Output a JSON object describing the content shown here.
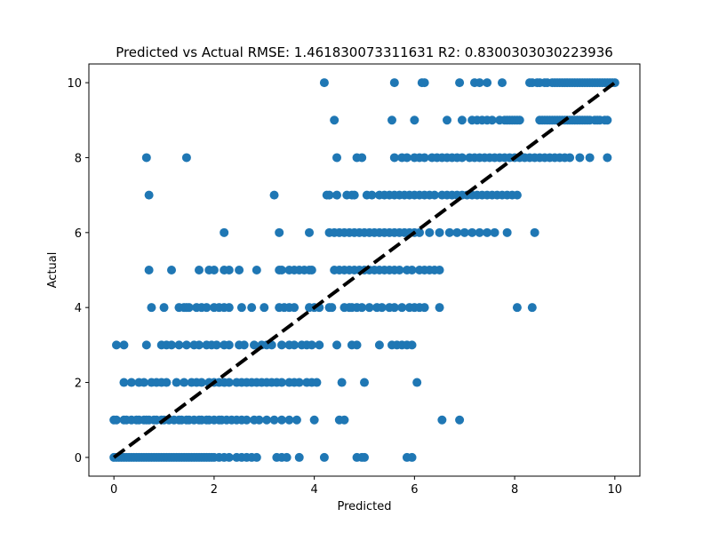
{
  "chart_data": {
    "type": "scatter",
    "title": "Predicted vs Actual  RMSE: 1.461830073311631  R2: 0.8300303030223936",
    "xlabel": "Predicted",
    "ylabel": "Actual",
    "xlim": [
      -0.5,
      10.5
    ],
    "ylim": [
      -0.5,
      10.5
    ],
    "xticks": [
      0,
      2,
      4,
      6,
      8,
      10
    ],
    "yticks": [
      0,
      2,
      4,
      6,
      8,
      10
    ],
    "point_color": "#1f77b4",
    "reference_line": {
      "x": [
        0,
        10
      ],
      "y": [
        0,
        10
      ],
      "color": "#000000",
      "style": "dashed"
    },
    "series": [
      {
        "actual": 10,
        "predicted": [
          4.2,
          5.6,
          6.15,
          6.2,
          6.9,
          7.2,
          7.3,
          7.45,
          7.75,
          8.3,
          8.35,
          8.45,
          8.5,
          8.6,
          8.65,
          8.75,
          8.8,
          8.85,
          8.9,
          8.95,
          9.0,
          9.05,
          9.1,
          9.15,
          9.2,
          9.25,
          9.3,
          9.35,
          9.4,
          9.45,
          9.5,
          9.55,
          9.6,
          9.65,
          9.7,
          9.75,
          9.8,
          9.85,
          9.9,
          9.95,
          10.0
        ]
      },
      {
        "actual": 9,
        "predicted": [
          4.4,
          5.55,
          6.0,
          6.65,
          6.95,
          7.15,
          7.25,
          7.35,
          7.45,
          7.55,
          7.7,
          7.8,
          7.85,
          7.9,
          7.95,
          8.0,
          8.05,
          8.1,
          8.5,
          8.55,
          8.6,
          8.65,
          8.7,
          8.75,
          8.8,
          8.85,
          8.9,
          8.95,
          9.0,
          9.05,
          9.1,
          9.15,
          9.2,
          9.25,
          9.3,
          9.35,
          9.4,
          9.45,
          9.5,
          9.6,
          9.65,
          9.7,
          9.8,
          9.85
        ]
      },
      {
        "actual": 8,
        "predicted": [
          0.65,
          1.45,
          4.45,
          4.85,
          4.95,
          5.6,
          5.75,
          5.85,
          6.0,
          6.1,
          6.2,
          6.35,
          6.45,
          6.55,
          6.65,
          6.75,
          6.85,
          6.95,
          7.1,
          7.2,
          7.3,
          7.4,
          7.5,
          7.6,
          7.7,
          7.8,
          7.9,
          8.0,
          8.1,
          8.2,
          8.3,
          8.4,
          8.5,
          8.6,
          8.7,
          8.8,
          8.9,
          9.0,
          9.1,
          9.3,
          9.5,
          9.85
        ]
      },
      {
        "actual": 7,
        "predicted": [
          0.7,
          3.2,
          4.25,
          4.3,
          4.45,
          4.65,
          4.75,
          4.8,
          5.05,
          5.15,
          5.3,
          5.4,
          5.5,
          5.6,
          5.7,
          5.8,
          5.9,
          6.0,
          6.1,
          6.2,
          6.3,
          6.4,
          6.55,
          6.65,
          6.75,
          6.85,
          6.95,
          7.05,
          7.15,
          7.25,
          7.35,
          7.45,
          7.55,
          7.65,
          7.75,
          7.85,
          7.95,
          8.05
        ]
      },
      {
        "actual": 6,
        "predicted": [
          2.2,
          3.3,
          3.9,
          4.3,
          4.4,
          4.5,
          4.6,
          4.7,
          4.8,
          4.9,
          5.0,
          5.1,
          5.2,
          5.3,
          5.4,
          5.5,
          5.6,
          5.7,
          5.8,
          5.9,
          6.0,
          6.1,
          6.3,
          6.5,
          6.7,
          6.85,
          7.0,
          7.15,
          7.3,
          7.45,
          7.6,
          7.85,
          8.4
        ]
      },
      {
        "actual": 5,
        "predicted": [
          0.7,
          1.15,
          1.7,
          1.9,
          2.0,
          2.2,
          2.3,
          2.5,
          2.85,
          3.3,
          3.35,
          3.5,
          3.6,
          3.7,
          3.8,
          3.9,
          3.95,
          4.4,
          4.5,
          4.6,
          4.7,
          4.8,
          4.9,
          5.0,
          5.1,
          5.2,
          5.3,
          5.4,
          5.5,
          5.6,
          5.7,
          5.85,
          5.95,
          6.1,
          6.2,
          6.3,
          6.4,
          6.5
        ]
      },
      {
        "actual": 4,
        "predicted": [
          0.75,
          1.0,
          1.3,
          1.4,
          1.45,
          1.5,
          1.65,
          1.75,
          1.85,
          2.0,
          2.1,
          2.2,
          2.3,
          2.55,
          2.75,
          3.0,
          3.3,
          3.4,
          3.5,
          3.6,
          3.9,
          4.0,
          4.1,
          4.3,
          4.35,
          4.6,
          4.7,
          4.75,
          4.85,
          4.95,
          5.1,
          5.25,
          5.35,
          5.5,
          5.6,
          5.75,
          5.9,
          6.0,
          6.1,
          6.2,
          6.5,
          8.05,
          8.35
        ]
      },
      {
        "actual": 3,
        "predicted": [
          0.05,
          0.2,
          0.65,
          0.95,
          1.05,
          1.15,
          1.3,
          1.45,
          1.6,
          1.7,
          1.85,
          1.95,
          2.05,
          2.2,
          2.3,
          2.5,
          2.6,
          2.8,
          2.95,
          3.05,
          3.15,
          3.35,
          3.5,
          3.6,
          3.75,
          3.85,
          3.95,
          4.1,
          4.45,
          4.75,
          4.85,
          5.3,
          5.55,
          5.65,
          5.75,
          5.85,
          5.95
        ]
      },
      {
        "actual": 2,
        "predicted": [
          0.2,
          0.35,
          0.5,
          0.6,
          0.75,
          0.85,
          0.95,
          1.05,
          1.25,
          1.4,
          1.55,
          1.65,
          1.75,
          1.9,
          2.0,
          2.1,
          2.2,
          2.3,
          2.45,
          2.55,
          2.65,
          2.75,
          2.85,
          2.95,
          3.05,
          3.15,
          3.25,
          3.35,
          3.5,
          3.6,
          3.7,
          3.85,
          3.95,
          4.05,
          4.55,
          5.0,
          6.05
        ]
      },
      {
        "actual": 1,
        "predicted": [
          0.0,
          0.05,
          0.2,
          0.25,
          0.35,
          0.45,
          0.5,
          0.6,
          0.65,
          0.7,
          0.8,
          0.85,
          0.95,
          1.0,
          1.1,
          1.2,
          1.3,
          1.35,
          1.45,
          1.5,
          1.6,
          1.7,
          1.75,
          1.85,
          1.9,
          2.0,
          2.1,
          2.15,
          2.25,
          2.35,
          2.45,
          2.55,
          2.65,
          2.8,
          2.9,
          3.05,
          3.2,
          3.35,
          3.5,
          3.65,
          4.0,
          4.5,
          4.6,
          6.55,
          6.9
        ]
      },
      {
        "actual": 0,
        "predicted": [
          0.0,
          0.05,
          0.1,
          0.15,
          0.2,
          0.25,
          0.3,
          0.35,
          0.4,
          0.45,
          0.5,
          0.55,
          0.6,
          0.65,
          0.7,
          0.75,
          0.8,
          0.85,
          0.9,
          0.95,
          1.0,
          1.05,
          1.1,
          1.15,
          1.2,
          1.25,
          1.3,
          1.35,
          1.4,
          1.45,
          1.5,
          1.55,
          1.6,
          1.65,
          1.7,
          1.75,
          1.8,
          1.85,
          1.9,
          1.95,
          2.0,
          2.1,
          2.2,
          2.3,
          2.45,
          2.55,
          2.65,
          2.75,
          2.85,
          3.25,
          3.35,
          3.45,
          3.7,
          4.2,
          4.85,
          4.95,
          5.0,
          5.85,
          5.95
        ]
      }
    ]
  }
}
